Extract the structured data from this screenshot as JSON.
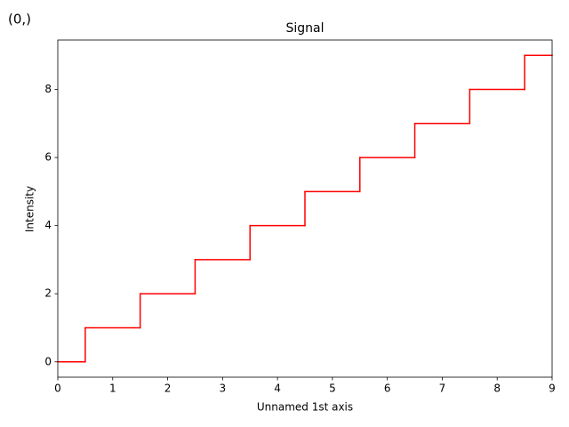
{
  "annotation": "(0,)",
  "annotation_color": "#ff0000",
  "chart_data": {
    "type": "step",
    "step_where": "mid",
    "title": "Signal",
    "x_label": "Unnamed 1st axis",
    "y_label": "Intensity",
    "x": [
      0,
      1,
      2,
      3,
      4,
      5,
      6,
      7,
      8,
      9
    ],
    "values": [
      0,
      1,
      2,
      3,
      4,
      5,
      6,
      7,
      8,
      9
    ],
    "color": "#ff0000",
    "xlim": [
      0,
      9
    ],
    "ylim": [
      -0.45,
      9.45
    ],
    "xticks": [
      0,
      1,
      2,
      3,
      4,
      5,
      6,
      7,
      8,
      9
    ],
    "yticks": [
      0,
      2,
      4,
      6,
      8
    ],
    "grid": false
  }
}
